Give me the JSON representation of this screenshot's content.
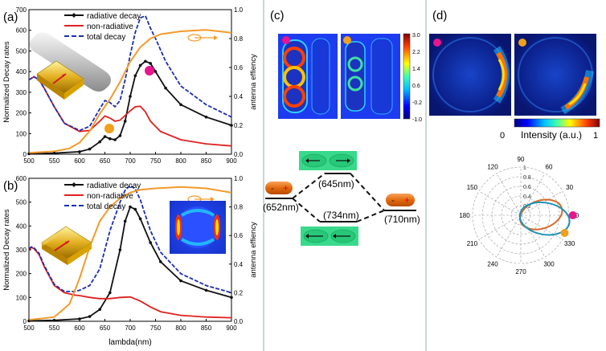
{
  "panels": {
    "a": {
      "label": "(a)",
      "ylabel_left": "Normalized Decay rates",
      "ylabel_right": "antenna effiency",
      "legend": [
        "radiative decay",
        "non-radiative",
        "total decay"
      ]
    },
    "b": {
      "label": "(b)",
      "ylabel_left": "Normalized Decay rates",
      "ylabel_right": "antenna effiency",
      "xlabel": "lambda(nm)",
      "legend": [
        "radiative decay",
        "non-radiative",
        "total decay"
      ]
    },
    "c": {
      "label": "(c)",
      "colorbar_ticks": [
        "3.0",
        "2.2",
        "1.4",
        "0.6",
        "-0.2",
        "-1.0"
      ],
      "levels": [
        "(645nm)",
        "(652nm)",
        "(734nm)",
        "(710nm)"
      ],
      "charge_minus": "-",
      "charge_plus": "+"
    },
    "d": {
      "label": "(d)",
      "colorbar_label": "Intensity (a.u.)",
      "colorbar_min": "0",
      "colorbar_max": "1",
      "polar_angle_ticks": [
        "0",
        "30",
        "60",
        "90",
        "120",
        "150",
        "180",
        "210",
        "240",
        "270",
        "300",
        "330"
      ],
      "polar_radial_ticks": [
        "0.2",
        "0.4",
        "0.6",
        "0.8",
        "1"
      ]
    }
  },
  "colors": {
    "radiative": "#111111",
    "nonradiative": "#e02020",
    "total": "#1a2fb0",
    "efficiency": "#f39a2b",
    "magenta_marker": "#e8158f",
    "orange_marker": "#f0a11b",
    "polar_orange": "#d66a2a",
    "polar_blue": "#1f93b5"
  },
  "chart_data": [
    {
      "type": "line",
      "panel": "a",
      "x_range": [
        500,
        900
      ],
      "y_left_range": [
        0,
        700
      ],
      "y_left_ticks": [
        0,
        100,
        200,
        300,
        400,
        500,
        600,
        700
      ],
      "y_right_range": [
        0,
        1.0
      ],
      "y_right_ticks": [
        0,
        0.2,
        0.4,
        0.6,
        0.8,
        1.0
      ],
      "x_ticks": [
        500,
        550,
        600,
        650,
        700,
        750,
        800,
        850,
        900
      ],
      "series": [
        {
          "name": "radiative decay",
          "axis": "left",
          "x": [
            500,
            550,
            600,
            620,
            640,
            650,
            660,
            670,
            680,
            690,
            700,
            710,
            720,
            730,
            740,
            750,
            770,
            800,
            850,
            900
          ],
          "y": [
            2,
            5,
            12,
            25,
            60,
            85,
            75,
            70,
            90,
            160,
            280,
            380,
            430,
            450,
            440,
            400,
            320,
            240,
            180,
            140
          ]
        },
        {
          "name": "non-radiative",
          "axis": "left",
          "x": [
            500,
            510,
            520,
            530,
            550,
            570,
            600,
            620,
            640,
            650,
            660,
            670,
            680,
            700,
            710,
            720,
            730,
            740,
            760,
            800,
            850,
            900
          ],
          "y": [
            360,
            375,
            360,
            320,
            230,
            150,
            110,
            115,
            160,
            185,
            175,
            160,
            165,
            210,
            230,
            232,
            205,
            160,
            110,
            70,
            50,
            40
          ]
        },
        {
          "name": "total decay",
          "axis": "left",
          "x": [
            500,
            510,
            520,
            530,
            550,
            570,
            600,
            620,
            640,
            650,
            660,
            670,
            680,
            690,
            700,
            710,
            720,
            730,
            740,
            750,
            770,
            800,
            850,
            900
          ],
          "y": [
            360,
            375,
            360,
            320,
            230,
            150,
            115,
            135,
            220,
            260,
            250,
            230,
            260,
            360,
            480,
            590,
            660,
            670,
            610,
            560,
            450,
            330,
            240,
            180
          ]
        },
        {
          "name": "",
          "axis": "right",
          "x": [
            500,
            550,
            580,
            600,
            620,
            640,
            660,
            680,
            700,
            720,
            740,
            760,
            800,
            850,
            900
          ],
          "y": [
            0.01,
            0.02,
            0.04,
            0.08,
            0.16,
            0.28,
            0.38,
            0.5,
            0.64,
            0.74,
            0.8,
            0.83,
            0.85,
            0.86,
            0.84
          ]
        }
      ]
    },
    {
      "type": "line",
      "panel": "b",
      "x_range": [
        500,
        900
      ],
      "y_left_range": [
        0,
        600
      ],
      "y_left_ticks": [
        0,
        100,
        200,
        300,
        400,
        500,
        600
      ],
      "y_right_range": [
        0,
        1.0
      ],
      "y_right_ticks": [
        0,
        0.2,
        0.4,
        0.6,
        0.8,
        1.0
      ],
      "x_ticks": [
        500,
        550,
        600,
        650,
        700,
        750,
        800,
        850,
        900
      ],
      "series": [
        {
          "name": "radiative decay",
          "axis": "left",
          "x": [
            500,
            550,
            600,
            620,
            640,
            660,
            680,
            690,
            700,
            710,
            720,
            740,
            760,
            800,
            850,
            900
          ],
          "y": [
            2,
            4,
            10,
            20,
            50,
            120,
            300,
            420,
            480,
            470,
            430,
            330,
            250,
            170,
            130,
            100
          ]
        },
        {
          "name": "non-radiative",
          "axis": "left",
          "x": [
            500,
            505,
            510,
            520,
            530,
            550,
            570,
            590,
            600,
            620,
            640,
            660,
            680,
            700,
            720,
            740,
            760,
            800,
            850,
            900
          ],
          "y": [
            300,
            310,
            305,
            280,
            230,
            150,
            120,
            110,
            108,
            100,
            95,
            95,
            100,
            102,
            85,
            60,
            40,
            25,
            18,
            15
          ]
        },
        {
          "name": "total decay",
          "axis": "left",
          "x": [
            500,
            505,
            510,
            520,
            530,
            550,
            570,
            590,
            600,
            620,
            640,
            650,
            660,
            680,
            690,
            700,
            710,
            720,
            740,
            760,
            800,
            850,
            900
          ],
          "y": [
            305,
            312,
            308,
            285,
            235,
            155,
            125,
            125,
            130,
            150,
            220,
            300,
            380,
            500,
            550,
            570,
            555,
            510,
            380,
            290,
            200,
            150,
            120
          ]
        },
        {
          "name": "",
          "axis": "right",
          "x": [
            500,
            550,
            580,
            600,
            620,
            640,
            660,
            680,
            700,
            720,
            750,
            800,
            850,
            900
          ],
          "y": [
            0.01,
            0.03,
            0.12,
            0.3,
            0.52,
            0.7,
            0.8,
            0.86,
            0.9,
            0.92,
            0.93,
            0.94,
            0.93,
            0.9
          ]
        }
      ]
    },
    {
      "type": "polar",
      "panel": "d",
      "r_range": [
        0,
        1
      ],
      "series": [
        {
          "name": "",
          "color": "orange",
          "ellipse": {
            "center_r": 0.42,
            "center_deg": 2,
            "rx": 0.45,
            "ry": 0.29,
            "tilt_deg": 18
          }
        },
        {
          "name": "",
          "color": "blue",
          "ellipse": {
            "center_r": 0.5,
            "center_deg": -8,
            "rx": 0.52,
            "ry": 0.33,
            "tilt_deg": -10
          }
        }
      ]
    }
  ]
}
